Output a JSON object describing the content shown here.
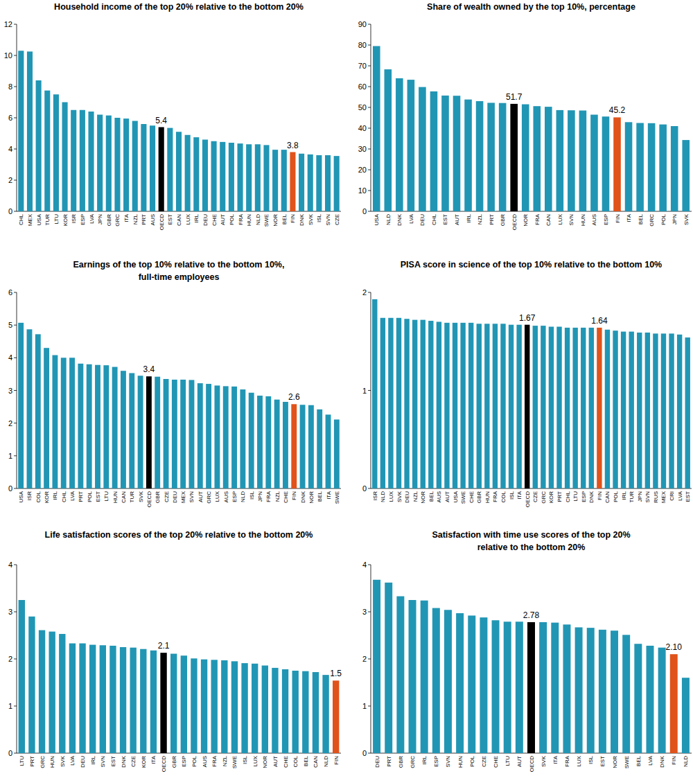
{
  "chart_data": [
    {
      "type": "bar",
      "title": "Household income of the top 20% relative to the bottom 20%",
      "categories": [
        "CHL",
        "MEX",
        "USA",
        "TUR",
        "LTU",
        "KOR",
        "ISR",
        "ESP",
        "LVA",
        "JPN",
        "GBR",
        "GRC",
        "ITA",
        "NZL",
        "PRT",
        "AUS",
        "OECD",
        "EST",
        "CAN",
        "LUX",
        "IRL",
        "DEU",
        "CHE",
        "AUT",
        "POL",
        "FRA",
        "HUN",
        "NLD",
        "SWE",
        "NOR",
        "BEL",
        "FIN",
        "DNK",
        "SVK",
        "ISL",
        "SVN",
        "CZE"
      ],
      "values": [
        10.3,
        10.25,
        8.4,
        7.75,
        7.5,
        7.0,
        6.5,
        6.5,
        6.4,
        6.2,
        6.15,
        6.0,
        5.95,
        5.8,
        5.6,
        5.5,
        5.4,
        5.35,
        5.1,
        4.9,
        4.75,
        4.6,
        4.5,
        4.45,
        4.4,
        4.35,
        4.3,
        4.3,
        4.25,
        3.95,
        3.95,
        3.8,
        3.7,
        3.65,
        3.6,
        3.6,
        3.55
      ],
      "value_labels": [
        null,
        null,
        null,
        null,
        null,
        null,
        null,
        null,
        null,
        null,
        null,
        null,
        null,
        null,
        null,
        null,
        "5.4",
        null,
        null,
        null,
        null,
        null,
        null,
        null,
        null,
        null,
        null,
        null,
        null,
        null,
        null,
        "3.8",
        null,
        null,
        null,
        null,
        null
      ],
      "data_labels": true,
      "colors": [
        "#2196b4",
        "#2196b4",
        "#2196b4",
        "#2196b4",
        "#2196b4",
        "#2196b4",
        "#2196b4",
        "#2196b4",
        "#2196b4",
        "#2196b4",
        "#2196b4",
        "#2196b4",
        "#2196b4",
        "#2196b4",
        "#2196b4",
        "#2196b4",
        "#000000",
        "#2196b4",
        "#2196b4",
        "#2196b4",
        "#2196b4",
        "#2196b4",
        "#2196b4",
        "#2196b4",
        "#2196b4",
        "#2196b4",
        "#2196b4",
        "#2196b4",
        "#2196b4",
        "#2196b4",
        "#2196b4",
        "#e0531b",
        "#2196b4",
        "#2196b4",
        "#2196b4",
        "#2196b4",
        "#2196b4"
      ],
      "ylim": [
        0,
        12
      ],
      "yticks": [
        0,
        2,
        4,
        6,
        8,
        10,
        12
      ],
      "grid": false
    },
    {
      "type": "bar",
      "title": "Share of wealth owned by the top 10%, percentage",
      "categories": [
        "USA",
        "NLD",
        "DNK",
        "LVA",
        "DEU",
        "CHL",
        "EST",
        "AUT",
        "IRL",
        "NZL",
        "PRT",
        "GBR",
        "OECD",
        "NOR",
        "FRA",
        "CAN",
        "LUX",
        "SVN",
        "HUN",
        "AUS",
        "ESP",
        "FIN",
        "ITA",
        "BEL",
        "GRC",
        "POL",
        "JPN",
        "SVK"
      ],
      "values": [
        79.5,
        68.3,
        64.0,
        63.3,
        59.8,
        57.7,
        55.7,
        55.6,
        53.8,
        53.0,
        52.2,
        52.1,
        51.7,
        51.5,
        50.6,
        50.3,
        48.7,
        48.6,
        48.5,
        46.5,
        45.6,
        45.2,
        42.9,
        42.5,
        42.4,
        41.8,
        41.0,
        34.3
      ],
      "value_labels": [
        null,
        null,
        null,
        null,
        null,
        null,
        null,
        null,
        null,
        null,
        null,
        null,
        "51.7",
        null,
        null,
        null,
        null,
        null,
        null,
        null,
        null,
        "45.2",
        null,
        null,
        null,
        null,
        null,
        null
      ],
      "data_labels": true,
      "colors": [
        "#2196b4",
        "#2196b4",
        "#2196b4",
        "#2196b4",
        "#2196b4",
        "#2196b4",
        "#2196b4",
        "#2196b4",
        "#2196b4",
        "#2196b4",
        "#2196b4",
        "#2196b4",
        "#000000",
        "#2196b4",
        "#2196b4",
        "#2196b4",
        "#2196b4",
        "#2196b4",
        "#2196b4",
        "#2196b4",
        "#2196b4",
        "#e0531b",
        "#2196b4",
        "#2196b4",
        "#2196b4",
        "#2196b4",
        "#2196b4",
        "#2196b4"
      ],
      "ylim": [
        0,
        90
      ],
      "yticks": [
        0,
        10,
        20,
        30,
        40,
        50,
        60,
        70,
        80,
        90
      ],
      "grid": false
    },
    {
      "type": "bar",
      "title": "Earnings of the top 10% relative to the bottom 10%,\nfull-time employees",
      "categories": [
        "USA",
        "ISR",
        "COL",
        "KOR",
        "IRL",
        "CHL",
        "LVA",
        "PRT",
        "POL",
        "EST",
        "LTU",
        "HUN",
        "CAN",
        "TUR",
        "SVK",
        "OECD",
        "GBR",
        "CZE",
        "DEU",
        "MEX",
        "SVN",
        "AUT",
        "GRC",
        "LUX",
        "AUS",
        "ESP",
        "NLD",
        "ISL",
        "JPN",
        "FRA",
        "NZL",
        "CHE",
        "FIN",
        "DNK",
        "NOR",
        "BEL",
        "ITA",
        "SWE"
      ],
      "values": [
        5.07,
        4.87,
        4.72,
        4.3,
        4.08,
        4.0,
        4.0,
        3.82,
        3.8,
        3.78,
        3.77,
        3.72,
        3.6,
        3.53,
        3.45,
        3.43,
        3.42,
        3.35,
        3.33,
        3.33,
        3.32,
        3.22,
        3.2,
        3.15,
        3.13,
        3.12,
        3.03,
        2.93,
        2.84,
        2.82,
        2.72,
        2.65,
        2.58,
        2.56,
        2.55,
        2.42,
        2.26,
        2.11
      ],
      "value_labels": [
        null,
        null,
        null,
        null,
        null,
        null,
        null,
        null,
        null,
        null,
        null,
        null,
        null,
        null,
        null,
        "3.4",
        null,
        null,
        null,
        null,
        null,
        null,
        null,
        null,
        null,
        null,
        null,
        null,
        null,
        null,
        null,
        null,
        "2.6",
        null,
        null,
        null,
        null,
        null
      ],
      "data_labels": true,
      "colors": [
        "#2196b4",
        "#2196b4",
        "#2196b4",
        "#2196b4",
        "#2196b4",
        "#2196b4",
        "#2196b4",
        "#2196b4",
        "#2196b4",
        "#2196b4",
        "#2196b4",
        "#2196b4",
        "#2196b4",
        "#2196b4",
        "#2196b4",
        "#000000",
        "#2196b4",
        "#2196b4",
        "#2196b4",
        "#2196b4",
        "#2196b4",
        "#2196b4",
        "#2196b4",
        "#2196b4",
        "#2196b4",
        "#2196b4",
        "#2196b4",
        "#2196b4",
        "#2196b4",
        "#2196b4",
        "#2196b4",
        "#2196b4",
        "#e0531b",
        "#2196b4",
        "#2196b4",
        "#2196b4",
        "#2196b4",
        "#2196b4"
      ],
      "ylim": [
        0,
        6
      ],
      "yticks": [
        0,
        1,
        2,
        3,
        4,
        5,
        6
      ],
      "grid": false
    },
    {
      "type": "bar",
      "title": "PISA score in science of the top 10% relative to the bottom 10%",
      "categories": [
        "ISR",
        "NLD",
        "LUX",
        "SVK",
        "DEU",
        "NZL",
        "NOR",
        "BEL",
        "AUS",
        "AUT",
        "USA",
        "SWE",
        "CHE",
        "GBR",
        "HUN",
        "FRA",
        "COL",
        "ISL",
        "ITA",
        "OECD",
        "CZE",
        "GRC",
        "KOR",
        "PRT",
        "CHL",
        "LTU",
        "ESP",
        "DNK",
        "FIN",
        "CAN",
        "POL",
        "IRL",
        "TUR",
        "JPN",
        "SVN",
        "RUS",
        "MEX",
        "CRI",
        "LVA",
        "EST"
      ],
      "values": [
        1.93,
        1.74,
        1.74,
        1.74,
        1.73,
        1.72,
        1.72,
        1.71,
        1.7,
        1.69,
        1.69,
        1.69,
        1.69,
        1.68,
        1.68,
        1.68,
        1.68,
        1.67,
        1.67,
        1.67,
        1.66,
        1.66,
        1.65,
        1.65,
        1.64,
        1.64,
        1.64,
        1.64,
        1.64,
        1.62,
        1.61,
        1.6,
        1.6,
        1.59,
        1.59,
        1.58,
        1.58,
        1.58,
        1.57,
        1.54
      ],
      "value_labels": [
        null,
        null,
        null,
        null,
        null,
        null,
        null,
        null,
        null,
        null,
        null,
        null,
        null,
        null,
        null,
        null,
        null,
        null,
        null,
        "1.67",
        null,
        null,
        null,
        null,
        null,
        null,
        null,
        null,
        "1.64",
        null,
        null,
        null,
        null,
        null,
        null,
        null,
        null,
        null,
        null,
        null
      ],
      "data_labels": true,
      "colors": [
        "#2196b4",
        "#2196b4",
        "#2196b4",
        "#2196b4",
        "#2196b4",
        "#2196b4",
        "#2196b4",
        "#2196b4",
        "#2196b4",
        "#2196b4",
        "#2196b4",
        "#2196b4",
        "#2196b4",
        "#2196b4",
        "#2196b4",
        "#2196b4",
        "#2196b4",
        "#2196b4",
        "#2196b4",
        "#000000",
        "#2196b4",
        "#2196b4",
        "#2196b4",
        "#2196b4",
        "#2196b4",
        "#2196b4",
        "#2196b4",
        "#2196b4",
        "#e0531b",
        "#2196b4",
        "#2196b4",
        "#2196b4",
        "#2196b4",
        "#2196b4",
        "#2196b4",
        "#2196b4",
        "#2196b4",
        "#2196b4",
        "#2196b4",
        "#2196b4"
      ],
      "ylim": [
        0,
        2
      ],
      "yticks": [
        0,
        1,
        2
      ],
      "grid": false
    },
    {
      "type": "bar",
      "title": "Life satisfaction scores of the top 20% relative to the bottom 20%",
      "categories": [
        "LTU",
        "PRT",
        "GRC",
        "HUN",
        "SVK",
        "LVA",
        "DEU",
        "IRL",
        "SVN",
        "EST",
        "DNK",
        "CZE",
        "KOR",
        "ITA",
        "OECD",
        "GBR",
        "ESP",
        "POL",
        "AUS",
        "FRA",
        "NZL",
        "SWE",
        "ISL",
        "LUX",
        "NOR",
        "AUT",
        "CHE",
        "COL",
        "BEL",
        "CAN",
        "NLD",
        "FIN"
      ],
      "values": [
        3.25,
        2.9,
        2.61,
        2.58,
        2.53,
        2.33,
        2.33,
        2.3,
        2.29,
        2.28,
        2.25,
        2.24,
        2.21,
        2.18,
        2.13,
        2.11,
        2.07,
        2.01,
        1.99,
        1.98,
        1.97,
        1.95,
        1.91,
        1.9,
        1.86,
        1.81,
        1.78,
        1.75,
        1.74,
        1.72,
        1.66,
        1.54
      ],
      "value_labels": [
        null,
        null,
        null,
        null,
        null,
        null,
        null,
        null,
        null,
        null,
        null,
        null,
        null,
        null,
        "2.1",
        null,
        null,
        null,
        null,
        null,
        null,
        null,
        null,
        null,
        null,
        null,
        null,
        null,
        null,
        null,
        null,
        "1.5"
      ],
      "data_labels": true,
      "colors": [
        "#2196b4",
        "#2196b4",
        "#2196b4",
        "#2196b4",
        "#2196b4",
        "#2196b4",
        "#2196b4",
        "#2196b4",
        "#2196b4",
        "#2196b4",
        "#2196b4",
        "#2196b4",
        "#2196b4",
        "#2196b4",
        "#000000",
        "#2196b4",
        "#2196b4",
        "#2196b4",
        "#2196b4",
        "#2196b4",
        "#2196b4",
        "#2196b4",
        "#2196b4",
        "#2196b4",
        "#2196b4",
        "#2196b4",
        "#2196b4",
        "#2196b4",
        "#2196b4",
        "#2196b4",
        "#2196b4",
        "#e0531b"
      ],
      "ylim": [
        0,
        4
      ],
      "yticks": [
        0,
        1,
        2,
        3,
        4
      ],
      "grid": false
    },
    {
      "type": "bar",
      "title": "Satisfaction with time use scores of the top 20%\nrelative to the bottom 20%",
      "categories": [
        "DEU",
        "PRT",
        "GBR",
        "GRC",
        "IRL",
        "ESP",
        "SVN",
        "HUN",
        "POL",
        "CZE",
        "CHE",
        "LTU",
        "AUT",
        "OECD",
        "SVK",
        "ITA",
        "FRA",
        "LUX",
        "ISL",
        "EST",
        "NOR",
        "SWE",
        "BEL",
        "LVA",
        "DNK",
        "FIN",
        "NLD"
      ],
      "values": [
        3.68,
        3.62,
        3.33,
        3.25,
        3.24,
        3.08,
        3.04,
        2.97,
        2.92,
        2.88,
        2.82,
        2.79,
        2.79,
        2.78,
        2.78,
        2.77,
        2.73,
        2.67,
        2.66,
        2.62,
        2.6,
        2.51,
        2.32,
        2.28,
        2.24,
        2.1,
        1.6
      ],
      "value_labels": [
        null,
        null,
        null,
        null,
        null,
        null,
        null,
        null,
        null,
        null,
        null,
        null,
        null,
        "2.78",
        null,
        null,
        null,
        null,
        null,
        null,
        null,
        null,
        null,
        null,
        null,
        "2.10",
        null
      ],
      "data_labels": true,
      "colors": [
        "#2196b4",
        "#2196b4",
        "#2196b4",
        "#2196b4",
        "#2196b4",
        "#2196b4",
        "#2196b4",
        "#2196b4",
        "#2196b4",
        "#2196b4",
        "#2196b4",
        "#2196b4",
        "#2196b4",
        "#000000",
        "#2196b4",
        "#2196b4",
        "#2196b4",
        "#2196b4",
        "#2196b4",
        "#2196b4",
        "#2196b4",
        "#2196b4",
        "#2196b4",
        "#2196b4",
        "#2196b4",
        "#e0531b",
        "#2196b4"
      ],
      "ylim": [
        0,
        4
      ],
      "yticks": [
        0,
        1,
        2,
        3,
        4
      ],
      "grid": false
    }
  ]
}
